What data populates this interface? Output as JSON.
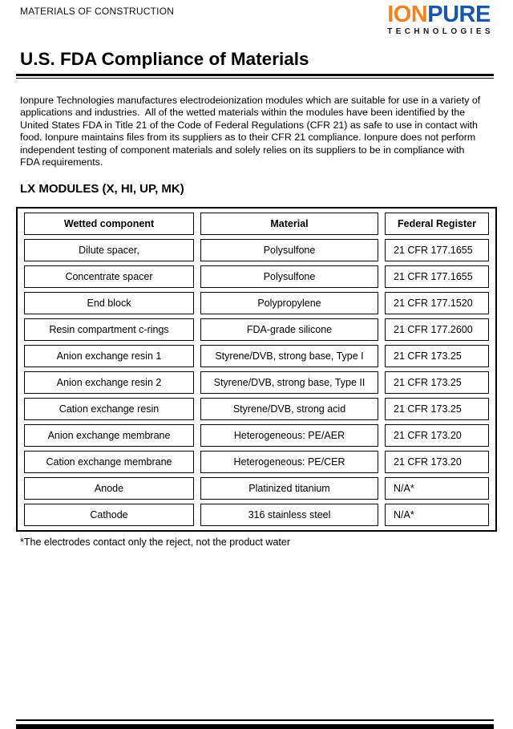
{
  "header": {
    "category": "MATERIALS OF CONSTRUCTION",
    "logo": {
      "part1": "ION",
      "part2": "PURE",
      "subtitle": "TECHNOLOGIES",
      "orange": "#F5821F",
      "blue": "#1A57A8"
    }
  },
  "title": "U.S. FDA Compliance of Materials",
  "intro": {
    "lines": [
      "Ionpure Technologies manufactures electrodeionization modules which are suitable for use in a variety of",
      "applications and industries.  All of the wetted materials within the modules have been identified by the",
      "United States FDA in Title 21 of the Code of Federal Regulations (CFR 21) as safe to use in contact with",
      "food. Ionpure maintains files from its suppliers as to their CFR 21 compliance. Ionpure does not perform",
      "independent testing of component materials and solely relies on its suppliers to be in compliance with",
      "FDA requirements."
    ]
  },
  "section_heading": "LX MODULES (X, HI, UP, MK)",
  "table": {
    "headers": [
      "Wetted component",
      "Material",
      "Federal Register"
    ],
    "rows": [
      [
        "Dilute spacer,",
        "Polysulfone",
        "21 CFR 177.1655"
      ],
      [
        "Concentrate spacer",
        "Polysulfone",
        "21 CFR 177.1655"
      ],
      [
        "End block",
        "Polypropylene",
        "21 CFR 177.1520"
      ],
      [
        "Resin compartment c-rings",
        "FDA-grade silicone",
        "21 CFR 177.2600"
      ],
      [
        "Anion exchange resin 1",
        "Styrene/DVB, strong base, Type I",
        "21 CFR 173.25"
      ],
      [
        "Anion exchange resin 2",
        "Styrene/DVB, strong base, Type II",
        "21 CFR 173.25"
      ],
      [
        "Cation exchange resin",
        "Styrene/DVB, strong acid",
        "21 CFR 173.25"
      ],
      [
        "Anion exchange membrane",
        "Heterogeneous: PE/AER",
        "21 CFR 173.20"
      ],
      [
        "Cation exchange membrane",
        "Heterogeneous: PE/CER",
        "21 CFR 173.20"
      ],
      [
        "Anode",
        "Platinized titanium",
        "N/A*"
      ],
      [
        "Cathode",
        "316 stainless steel",
        "N/A*"
      ]
    ]
  },
  "footnote": "*The electrodes contact only the reject, not the product water"
}
